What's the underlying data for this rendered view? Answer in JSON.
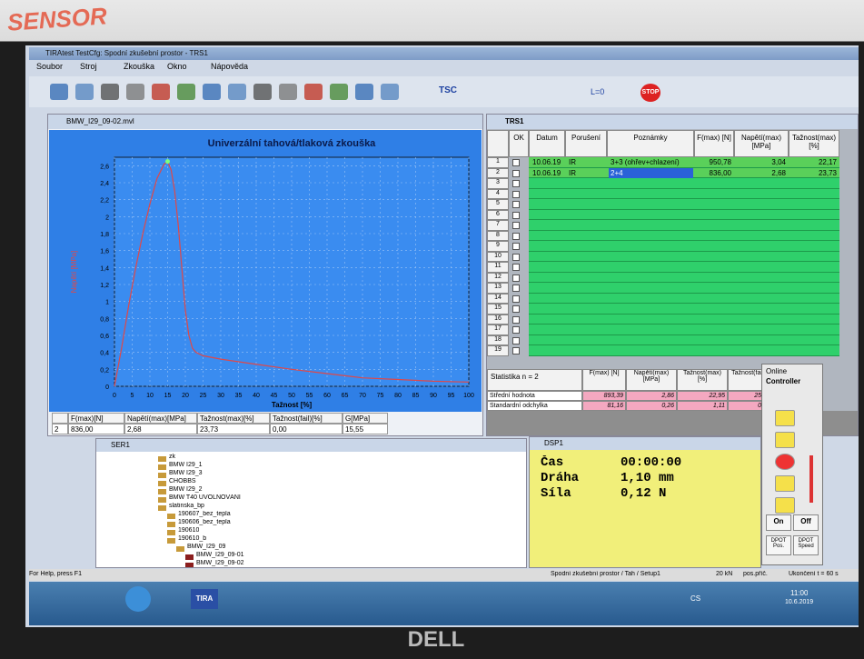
{
  "sticker": "SENSOR",
  "brand": "DELL",
  "window": {
    "title": "TIRAtest  TestCfg: Spodní zkušební prostor - TRS1",
    "menu": [
      "Soubor",
      "Stroj",
      "Zkouška",
      "Okno",
      "Nápověda"
    ],
    "toolbar": [
      "TSC",
      "L=0",
      "STOP"
    ]
  },
  "graph_window": {
    "title": "BMW_I29_09-02.mvl",
    "plot": {
      "type": "line",
      "title": "Univerzální tahová/tlaková zkouška",
      "x_label": "Tažnost [%]",
      "y_label": "Napětí [MPa]",
      "color": "#e04848",
      "x": [
        0,
        2,
        4,
        6,
        8,
        10,
        12,
        14,
        15,
        16,
        17,
        18,
        19,
        20,
        21,
        22,
        23,
        25,
        30,
        40,
        50,
        60,
        70,
        80,
        90,
        100
      ],
      "y": [
        0,
        0.45,
        0.95,
        1.4,
        1.8,
        2.15,
        2.45,
        2.62,
        2.65,
        2.55,
        2.3,
        1.9,
        1.4,
        0.9,
        0.6,
        0.45,
        0.4,
        0.36,
        0.32,
        0.26,
        0.2,
        0.15,
        0.1,
        0.08,
        0.06,
        0.05
      ],
      "xlim": [
        0,
        100
      ],
      "ylim": [
        0,
        2.7
      ],
      "xticks": [
        0,
        5,
        10,
        15,
        20,
        25,
        30,
        35,
        40,
        45,
        50,
        55,
        60,
        65,
        70,
        75,
        80,
        85,
        90,
        95,
        100
      ],
      "yticks": [
        0,
        {
          "value": 0.2,
          "label": "0,2"
        },
        {
          "value": 0.4,
          "label": "0,4"
        },
        {
          "value": 0.6,
          "label": "0,6"
        },
        {
          "value": 0.8,
          "label": "0,8"
        },
        1,
        {
          "value": 1.2,
          "label": "1,2"
        },
        {
          "value": 1.4,
          "label": "1,4"
        },
        {
          "value": 1.6,
          "label": "1,6"
        },
        {
          "value": 1.8,
          "label": "1,8"
        },
        2,
        {
          "value": 2.2,
          "label": "2,2"
        },
        {
          "value": 2.4,
          "label": "2,4"
        },
        {
          "value": 2.6,
          "label": "2,6"
        }
      ],
      "grid": true
    },
    "summary": {
      "headers": [
        "",
        "F(max)[N]",
        "Napětí(max)[MPa]",
        "Tažnost(max)[%]",
        "Tažnost(fail)[%]",
        "G[MPa]"
      ],
      "row": [
        "2",
        "836,00",
        "2,68",
        "23,73",
        "0,00",
        "15,55"
      ]
    }
  },
  "results_window": {
    "title": "TRS1",
    "headers": [
      "",
      "OK",
      "Datum",
      "Porušení",
      "Poznámky",
      "F(max) [N]",
      "Napětí(max) [MPa]",
      "Tažnost(max) [%]"
    ],
    "row_numbers": [
      1,
      2,
      3,
      4,
      5,
      6,
      7,
      8,
      9,
      10,
      11,
      12,
      13,
      14,
      15,
      16,
      17,
      18,
      19
    ],
    "rows": [
      [
        "10.06.19",
        "IR",
        "3+3 (ohřev+chlazení)",
        "950,78",
        "3,04",
        "22,17"
      ],
      [
        "10.06.19",
        "IR",
        "2+4",
        "836,00",
        "2,68",
        "23,73"
      ]
    ],
    "statistics": {
      "title": "Statistika  n = 2",
      "headers": [
        "F(max) [N]",
        "Napětí(max) [MPa]",
        "Tažnost(max) [%]",
        "Tažnost(fai"
      ],
      "rows": [
        [
          "Střední hodnota",
          "893,39",
          "2,86",
          "22,95",
          "25,"
        ],
        [
          "Standardní odchylka",
          "81,16",
          "0,26",
          "1,11",
          "0,"
        ]
      ]
    }
  },
  "controller": {
    "title": "Online",
    "subtitle": "Controller",
    "buttons": [
      "On",
      "Off",
      "DPOT Pos.",
      "DPOT Speed"
    ]
  },
  "tree_window": {
    "title": "SER1",
    "items": [
      "zk",
      "BMW I29_1",
      "BMW I29_3",
      "CHOBBS",
      "BMW I29_2",
      "BMW T40 UVOLŇOVÁNÍ",
      "slatinska_bp",
      "190607_bez_tepla",
      "190606_bez_tepla",
      "190610",
      "190610_b",
      "BMW_I29_09",
      "BMW_I29_09-01",
      "BMW_I29_09-02"
    ]
  },
  "display_window": {
    "title": "DSP1",
    "rows": [
      [
        "Čas",
        "00:00:00"
      ],
      [
        "Dráha",
        "1,10 mm"
      ],
      [
        "Síla",
        "0,12 N"
      ]
    ]
  },
  "status_bar": [
    "For Help, press F1",
    "Spodní zkušební prostor / Tah / Setup1",
    "20 kN",
    "pos.příč.",
    "Ukončení t = 60 s"
  ],
  "taskbar": {
    "apps": [
      "TIRA"
    ],
    "language": "CS",
    "time": "11:00",
    "date": "10.6.2019"
  }
}
